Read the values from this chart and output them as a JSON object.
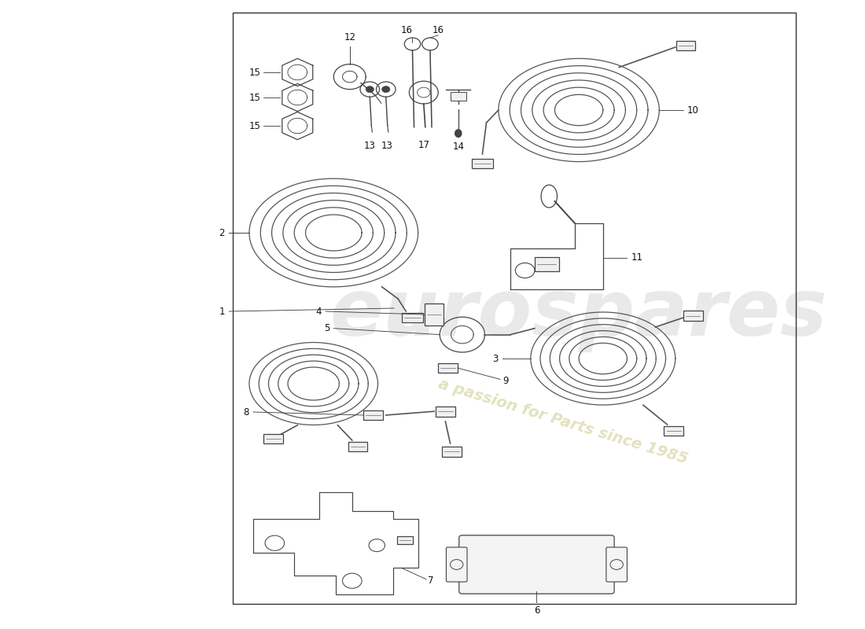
{
  "background_color": "#ffffff",
  "line_color": "#444444",
  "watermark1": "eurospares",
  "watermark2": "a passion for Parts since 1985",
  "wm_color1": "#d0d0d0",
  "wm_color2": "#d8d8a8",
  "fig_width": 11.0,
  "fig_height": 8.0,
  "dpi": 100,
  "border": [
    0.29,
    0.04,
    0.7,
    0.94
  ],
  "coil_color": "#555555",
  "label_color": "#111111",
  "label_fontsize": 8.5
}
